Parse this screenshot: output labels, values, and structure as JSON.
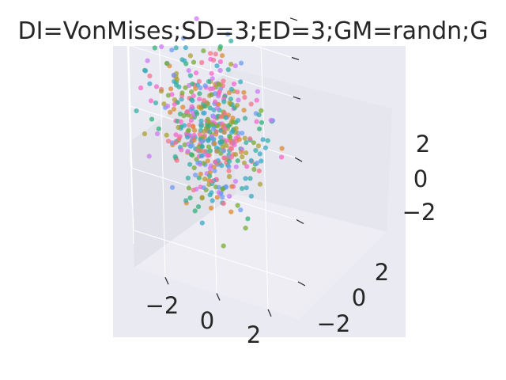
{
  "chart_data": {
    "type": "scatter",
    "title": "DI=VonMises;SD=3;ED=3;GM=randn;G",
    "projection": "3d",
    "xlabel": "",
    "ylabel": "",
    "zlabel": "",
    "xlim": [
      -3.2,
      3.2
    ],
    "ylim": [
      -3.2,
      3.2
    ],
    "zlim": [
      -3.2,
      3.2
    ],
    "x_ticks": [
      "−2",
      "0",
      "2"
    ],
    "y_ticks": [
      "−2",
      "0",
      "2"
    ],
    "z_ticks": [
      "−2",
      "0",
      "2"
    ],
    "grid": true,
    "legend": "none",
    "point_count": 500,
    "distribution": "approximately standard normal in x, y and z, centered at 0",
    "palette": [
      "#f77189",
      "#dc8932",
      "#ae9d31",
      "#77ab31",
      "#33b07a",
      "#36ada4",
      "#38a9c5",
      "#6e9bf4",
      "#cc7af4",
      "#f565cc"
    ],
    "colors": {
      "figure_background": "#ffffff",
      "axes_background": "#eaeaf2",
      "pane_left": "#e2e2ea",
      "pane_back": "#e6e6ee",
      "pane_floor": "#ededf3",
      "grid": "#ffffff",
      "text": "#262626"
    }
  }
}
